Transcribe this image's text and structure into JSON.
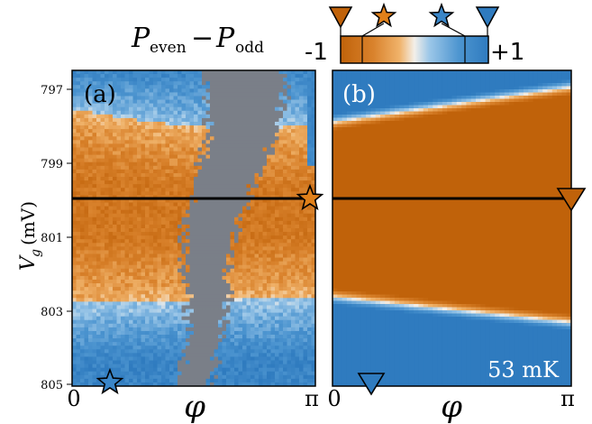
{
  "colorbar": {
    "title_main": "P",
    "title_sub1": "even",
    "title_minus": "−",
    "title_sub2": "odd",
    "min_label": "-1",
    "max_label": "+1",
    "colors": {
      "neg": "#c0620a",
      "mid": "#f3efe9",
      "pos": "#2f7bbf"
    },
    "markers": [
      {
        "shape": "triangle-down",
        "color": "#c0620a",
        "value": -1.0
      },
      {
        "shape": "star",
        "color": "#e0801a",
        "value": -0.55
      },
      {
        "shape": "star",
        "color": "#3a86c8",
        "value": 0.55
      },
      {
        "shape": "triangle-down",
        "color": "#2f7bbf",
        "value": 1.0
      }
    ]
  },
  "chart_data": [
    {
      "type": "heatmap",
      "panel_label": "(a)",
      "xlabel": "φ",
      "ylabel_main": "V",
      "ylabel_sub": "g",
      "ylabel_unit": "(mV)",
      "x_ticks": [
        "0",
        "π"
      ],
      "xlim": [
        0,
        3.14159
      ],
      "y_ticks": [
        "797",
        "799",
        "801",
        "803",
        "805"
      ],
      "ylim": [
        805,
        796.2
      ],
      "cut_line_vg": 800.0,
      "masked_color": "#7a7f88",
      "markers": [
        {
          "shape": "star",
          "x": 3.1,
          "y": 800.0,
          "color": "#e0801a"
        },
        {
          "shape": "star",
          "x": 0.5,
          "y": 804.9,
          "color": "#3a86c8"
        }
      ]
    },
    {
      "type": "heatmap",
      "panel_label": "(b)",
      "xlabel": "φ",
      "x_ticks": [
        "0",
        "π"
      ],
      "xlim": [
        0,
        3.14159
      ],
      "ylim": [
        805,
        796.2
      ],
      "cut_line_vg": 800.0,
      "annotation": "53 mK",
      "markers": [
        {
          "shape": "triangle-down",
          "x": 3.14,
          "y": 800.0,
          "color": "#c0620a"
        },
        {
          "shape": "triangle-down",
          "x": 0.5,
          "y": 805.0,
          "color": "#2f7bbf"
        }
      ]
    }
  ]
}
